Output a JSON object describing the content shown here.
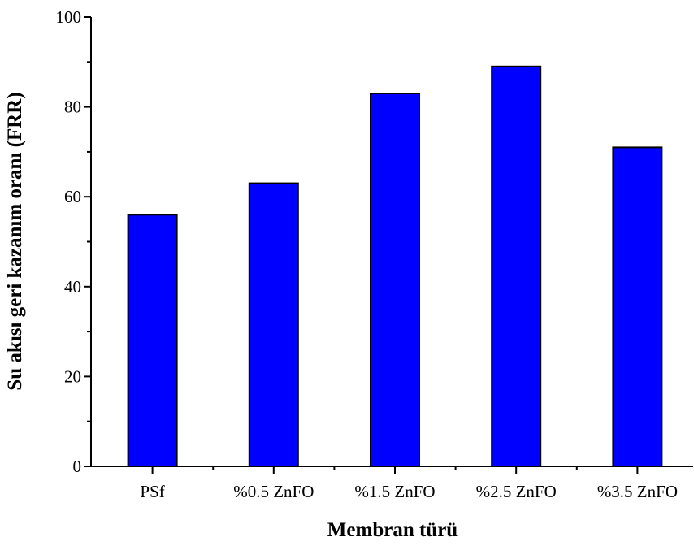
{
  "chart_data": {
    "type": "bar",
    "categories": [
      "PSf",
      "%0.5 ZnFO",
      "%1.5 ZnFO",
      "%2.5 ZnFO",
      "%3.5 ZnFO"
    ],
    "values": [
      56,
      63,
      83,
      89,
      71
    ],
    "title": "",
    "xlabel": "Membran türü",
    "ylabel": "Su akısı geri kazanım oranı (FRR)",
    "ylim": [
      0,
      100
    ],
    "yticks": [
      0,
      20,
      40,
      60,
      80,
      100
    ],
    "ytick_labels": [
      "0",
      "20",
      "40",
      "60",
      "80",
      "100"
    ],
    "grid": false,
    "legend": "none",
    "bar_color": "#0000ff",
    "bar_edge_color": "#000000"
  }
}
